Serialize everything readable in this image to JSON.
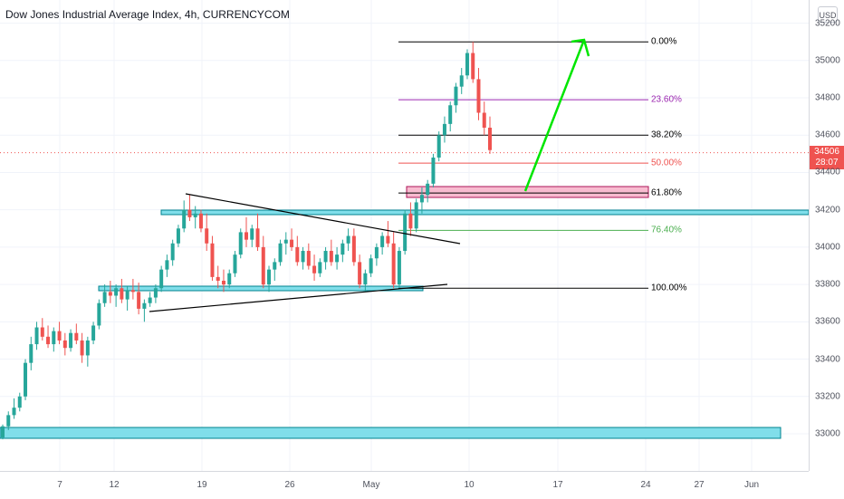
{
  "chart_title": "Dow Jones Industrial Average Index, 4h, CURRENCYCOM",
  "currency": "USD",
  "last_price": {
    "value": "34506",
    "countdown": "28:07",
    "color": "#ef5350"
  },
  "colors": {
    "up": "#26a69a",
    "down": "#ef5350",
    "zone": "#80deea",
    "zone_border": "#00838f",
    "pink_zone": "#f8bbd0",
    "pink_border": "#ad1457",
    "arrow": "#00e600"
  },
  "chart_data": {
    "type": "candlestick",
    "price_range": [
      32850,
      35300
    ],
    "price_ticks": [
      33000,
      33200,
      33400,
      33600,
      33800,
      34000,
      34200,
      34400,
      34600,
      34800,
      35000,
      35200
    ],
    "time_ticks": [
      "7",
      "12",
      "19",
      "26",
      "May",
      "10",
      "17",
      "24",
      "27",
      "Jun"
    ],
    "fibonacci": [
      {
        "label": "0.00%",
        "price": 35100,
        "color": "#000000"
      },
      {
        "label": "23.60%",
        "price": 34790,
        "color": "#9c27b0"
      },
      {
        "label": "38.20%",
        "price": 34600,
        "color": "#000000"
      },
      {
        "label": "50.00%",
        "price": 34450,
        "color": "#ef5350"
      },
      {
        "label": "61.80%",
        "price": 34290,
        "color": "#000000"
      },
      {
        "label": "76.40%",
        "price": 34090,
        "color": "#4caf50"
      },
      {
        "label": "100.00%",
        "price": 33780,
        "color": "#000000"
      }
    ],
    "candles": [
      [
        32980,
        33050,
        32970,
        33040
      ],
      [
        33040,
        33120,
        33020,
        33100
      ],
      [
        33100,
        33190,
        33080,
        33140
      ],
      [
        33140,
        33220,
        33120,
        33200
      ],
      [
        33200,
        33400,
        33180,
        33380
      ],
      [
        33380,
        33520,
        33340,
        33480
      ],
      [
        33480,
        33600,
        33450,
        33570
      ],
      [
        33570,
        33620,
        33500,
        33520
      ],
      [
        33520,
        33580,
        33460,
        33480
      ],
      [
        33480,
        33570,
        33440,
        33550
      ],
      [
        33550,
        33600,
        33480,
        33500
      ],
      [
        33500,
        33540,
        33420,
        33460
      ],
      [
        33460,
        33560,
        33440,
        33540
      ],
      [
        33540,
        33590,
        33480,
        33500
      ],
      [
        33500,
        33540,
        33380,
        33420
      ],
      [
        33420,
        33520,
        33360,
        33500
      ],
      [
        33500,
        33600,
        33480,
        33580
      ],
      [
        33580,
        33720,
        33560,
        33700
      ],
      [
        33700,
        33800,
        33680,
        33760
      ],
      [
        33760,
        33820,
        33700,
        33740
      ],
      [
        33740,
        33800,
        33680,
        33780
      ],
      [
        33780,
        33830,
        33700,
        33720
      ],
      [
        33720,
        33790,
        33660,
        33770
      ],
      [
        33770,
        33830,
        33720,
        33760
      ],
      [
        33760,
        33810,
        33640,
        33670
      ],
      [
        33670,
        33720,
        33600,
        33700
      ],
      [
        33700,
        33760,
        33680,
        33730
      ],
      [
        33730,
        33800,
        33700,
        33780
      ],
      [
        33780,
        33900,
        33760,
        33880
      ],
      [
        33880,
        33960,
        33840,
        33930
      ],
      [
        33930,
        34040,
        33900,
        34020
      ],
      [
        34020,
        34120,
        34000,
        34100
      ],
      [
        34100,
        34250,
        34080,
        34200
      ],
      [
        34200,
        34280,
        34140,
        34160
      ],
      [
        34160,
        34220,
        34100,
        34180
      ],
      [
        34180,
        34200,
        34080,
        34100
      ],
      [
        34100,
        34180,
        33980,
        34020
      ],
      [
        34020,
        34060,
        33820,
        33840
      ],
      [
        33840,
        33900,
        33780,
        33820
      ],
      [
        33820,
        33880,
        33760,
        33800
      ],
      [
        33800,
        33880,
        33780,
        33860
      ],
      [
        33860,
        33980,
        33840,
        33960
      ],
      [
        33960,
        34100,
        33940,
        34080
      ],
      [
        34080,
        34160,
        34000,
        34040
      ],
      [
        34040,
        34120,
        34000,
        34100
      ],
      [
        34100,
        34180,
        33980,
        34000
      ],
      [
        34000,
        34060,
        33780,
        33800
      ],
      [
        33800,
        33900,
        33760,
        33880
      ],
      [
        33880,
        33940,
        33820,
        33920
      ],
      [
        33920,
        34040,
        33900,
        34020
      ],
      [
        34020,
        34080,
        33960,
        34040
      ],
      [
        34040,
        34100,
        33980,
        34000
      ],
      [
        34000,
        34060,
        33900,
        33920
      ],
      [
        33920,
        34000,
        33880,
        33980
      ],
      [
        33980,
        34020,
        33880,
        33900
      ],
      [
        33900,
        33960,
        33820,
        33860
      ],
      [
        33860,
        33940,
        33840,
        33920
      ],
      [
        33920,
        34000,
        33880,
        33980
      ],
      [
        33980,
        34040,
        33900,
        33920
      ],
      [
        33920,
        34000,
        33880,
        33960
      ],
      [
        33960,
        34040,
        33920,
        34020
      ],
      [
        34020,
        34100,
        33980,
        34060
      ],
      [
        34060,
        34100,
        33900,
        33920
      ],
      [
        33920,
        33960,
        33780,
        33800
      ],
      [
        33800,
        33880,
        33760,
        33860
      ],
      [
        33860,
        33960,
        33840,
        33940
      ],
      [
        33940,
        34020,
        33900,
        34000
      ],
      [
        34000,
        34080,
        33960,
        34060
      ],
      [
        34060,
        34140,
        34000,
        34020
      ],
      [
        34020,
        34080,
        33780,
        33800
      ],
      [
        33800,
        34000,
        33780,
        33980
      ],
      [
        33980,
        34200,
        33960,
        34180
      ],
      [
        34180,
        34240,
        34060,
        34100
      ],
      [
        34100,
        34260,
        34080,
        34240
      ],
      [
        34240,
        34320,
        34180,
        34280
      ],
      [
        34280,
        34360,
        34240,
        34340
      ],
      [
        34340,
        34500,
        34320,
        34480
      ],
      [
        34480,
        34620,
        34460,
        34600
      ],
      [
        34600,
        34700,
        34560,
        34660
      ],
      [
        34660,
        34780,
        34620,
        34760
      ],
      [
        34760,
        34880,
        34720,
        34860
      ],
      [
        34860,
        34960,
        34820,
        34920
      ],
      [
        34920,
        35060,
        34900,
        35040
      ],
      [
        35040,
        35100,
        34880,
        34900
      ],
      [
        34900,
        34960,
        34680,
        34720
      ],
      [
        34720,
        34780,
        34600,
        34640
      ],
      [
        34640,
        34700,
        34500,
        34520
      ]
    ]
  }
}
